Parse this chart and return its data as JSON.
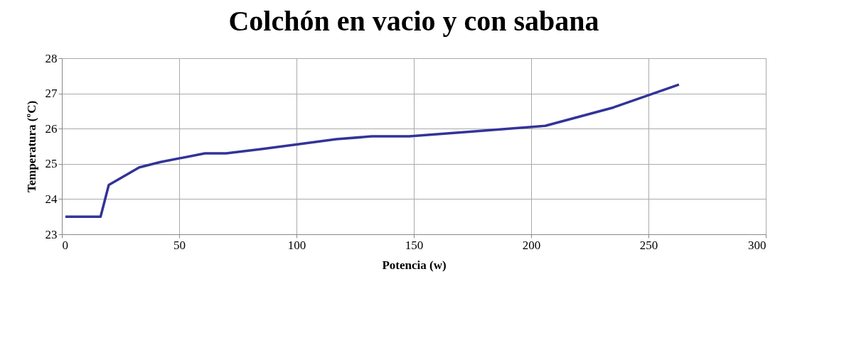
{
  "chart_data": {
    "type": "line",
    "title": "Colchón en vacio y con sabana",
    "xlabel": "Potencia (w)",
    "ylabel": "Temperatura (ºC)",
    "x": [
      1.5,
      16.5,
      20,
      33,
      42,
      61,
      70,
      85,
      100,
      117,
      132,
      148,
      175,
      206,
      235,
      263
    ],
    "series": [
      {
        "color": "#333399",
        "values": [
          23.5,
          23.5,
          24.4,
          24.9,
          25.05,
          25.3,
          25.3,
          25.42,
          25.55,
          25.7,
          25.78,
          25.78,
          25.92,
          26.08,
          26.6,
          27.25
        ]
      }
    ],
    "xlim": [
      0,
      300
    ],
    "xticks": [
      0,
      50,
      100,
      150,
      200,
      250,
      300
    ],
    "ylim": [
      23,
      28
    ],
    "yticks": [
      23,
      24,
      25,
      26,
      27,
      28
    ],
    "grid": true
  }
}
